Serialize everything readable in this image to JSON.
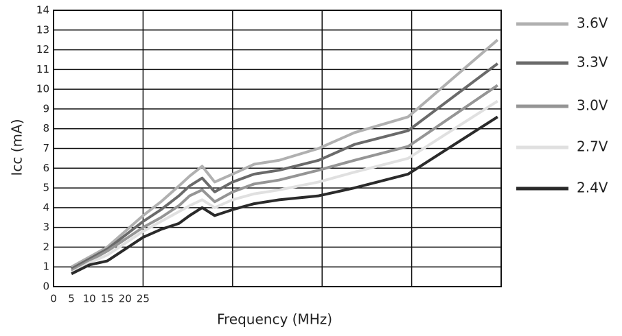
{
  "chart_data": {
    "type": "line",
    "x_label": "Frequency (MHz)",
    "y_label": "Icc (mA)",
    "x": [
      5,
      10,
      15,
      20,
      25,
      30,
      35,
      38,
      41.5,
      45,
      50,
      56,
      63,
      74,
      84,
      99,
      124
    ],
    "series": [
      {
        "name": "3.6V",
        "color": "#b0b0b0",
        "values": [
          1.0,
          1.5,
          2.0,
          2.8,
          3.6,
          4.3,
          5.1,
          5.6,
          6.1,
          5.3,
          5.7,
          6.2,
          6.4,
          7.0,
          7.8,
          8.6,
          12.5
        ]
      },
      {
        "name": "3.3V",
        "color": "#6a6a6a",
        "values": [
          0.9,
          1.4,
          1.9,
          2.6,
          3.3,
          3.9,
          4.6,
          5.1,
          5.5,
          4.8,
          5.3,
          5.7,
          5.9,
          6.4,
          7.2,
          7.9,
          11.3
        ]
      },
      {
        "name": "3.0V",
        "color": "#959595",
        "values": [
          0.8,
          1.3,
          1.8,
          2.4,
          3.0,
          3.5,
          4.1,
          4.6,
          4.9,
          4.3,
          4.8,
          5.2,
          5.4,
          5.9,
          6.4,
          7.1,
          10.2
        ]
      },
      {
        "name": "2.7V",
        "color": "#e0e0e0",
        "values": [
          0.7,
          1.2,
          1.6,
          2.2,
          2.8,
          3.3,
          3.8,
          4.1,
          4.4,
          4.0,
          4.4,
          4.7,
          4.9,
          5.3,
          5.8,
          6.5,
          9.4
        ]
      },
      {
        "name": "2.4V",
        "color": "#2a2a2a",
        "values": [
          0.65,
          1.1,
          1.3,
          1.9,
          2.5,
          2.9,
          3.2,
          3.6,
          4.0,
          3.6,
          3.9,
          4.2,
          4.4,
          4.6,
          5.0,
          5.7,
          8.6
        ]
      }
    ],
    "xlim": [
      0,
      125
    ],
    "ylim": [
      0,
      14
    ],
    "xticks": [
      0,
      5,
      10,
      15,
      20,
      25
    ],
    "xgrid": [
      25,
      50,
      75,
      100,
      125
    ],
    "yticks": [
      0,
      1,
      2,
      3,
      4,
      5,
      6,
      7,
      8,
      9,
      10,
      11,
      12,
      13,
      14
    ],
    "grid": true,
    "legend": "right"
  }
}
